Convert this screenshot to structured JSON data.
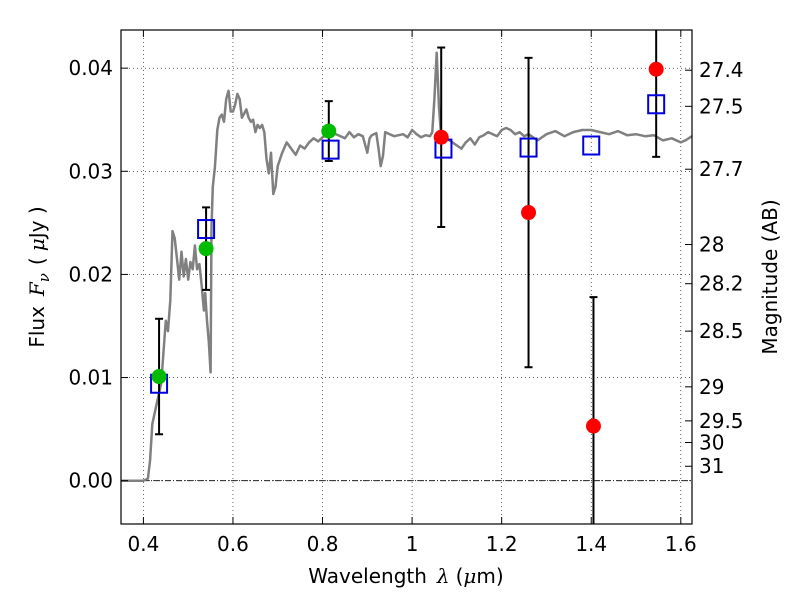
{
  "chart_data": {
    "type": "scatter",
    "xlabel": {
      "prefix": "Wavelength",
      "symbol": "λ",
      "unit_open": "(",
      "unit_mu": "μ",
      "unit_rest": "m)"
    },
    "ylabel": {
      "prefix": "Flux",
      "symbol": "F",
      "subscript": "ν",
      "unit_open": "(",
      "unit_mu": "μ",
      "unit_rest": "Jy )"
    },
    "y2label": "Magnitude (AB)",
    "xlim": [
      0.35,
      1.625
    ],
    "ylim": [
      -0.0042,
      0.0437
    ],
    "grid": true,
    "x_ticks": [
      {
        "value": 0.4,
        "label": "0.4"
      },
      {
        "value": 0.6,
        "label": "0.6"
      },
      {
        "value": 0.8,
        "label": "0.8"
      },
      {
        "value": 1.0,
        "label": "1"
      },
      {
        "value": 1.2,
        "label": "1.2"
      },
      {
        "value": 1.4,
        "label": "1.4"
      },
      {
        "value": 1.6,
        "label": "1.6"
      }
    ],
    "y_ticks": [
      {
        "value": 0.0,
        "label": "0.00"
      },
      {
        "value": 0.01,
        "label": "0.01"
      },
      {
        "value": 0.02,
        "label": "0.02"
      },
      {
        "value": 0.03,
        "label": "0.03"
      },
      {
        "value": 0.04,
        "label": "0.04"
      }
    ],
    "y2_ticks": [
      {
        "label": "27.4",
        "flux": 0.0398
      },
      {
        "label": "27.5",
        "flux": 0.0363
      },
      {
        "label": "27.7",
        "flux": 0.0302
      },
      {
        "label": "28",
        "flux": 0.0229
      },
      {
        "label": "28.2",
        "flux": 0.0191
      },
      {
        "label": "28.5",
        "flux": 0.0145
      },
      {
        "label": "29",
        "flux": 0.0091
      },
      {
        "label": "29.5",
        "flux": 0.0058
      },
      {
        "label": "30",
        "flux": 0.0037
      },
      {
        "label": "31",
        "flux": 0.0014
      }
    ],
    "series": [
      {
        "kind": "line",
        "color": "#808080",
        "points": [
          [
            0.35,
            0.0
          ],
          [
            0.4,
            0.0
          ],
          [
            0.41,
            0.0002
          ],
          [
            0.415,
            0.002
          ],
          [
            0.42,
            0.0055
          ],
          [
            0.43,
            0.0075
          ],
          [
            0.44,
            0.0095
          ],
          [
            0.445,
            0.0125
          ],
          [
            0.45,
            0.0155
          ],
          [
            0.455,
            0.0145
          ],
          [
            0.46,
            0.0175
          ],
          [
            0.465,
            0.0242
          ],
          [
            0.47,
            0.0235
          ],
          [
            0.475,
            0.0215
          ],
          [
            0.48,
            0.0195
          ],
          [
            0.485,
            0.0222
          ],
          [
            0.49,
            0.0198
          ],
          [
            0.495,
            0.0215
          ],
          [
            0.5,
            0.0195
          ],
          [
            0.505,
            0.0212
          ],
          [
            0.51,
            0.0205
          ],
          [
            0.515,
            0.0228
          ],
          [
            0.52,
            0.0205
          ],
          [
            0.525,
            0.021
          ],
          [
            0.53,
            0.019
          ],
          [
            0.535,
            0.0165
          ],
          [
            0.538,
            0.0182
          ],
          [
            0.542,
            0.0155
          ],
          [
            0.546,
            0.0135
          ],
          [
            0.55,
            0.0105
          ],
          [
            0.552,
            0.0245
          ],
          [
            0.555,
            0.0285
          ],
          [
            0.56,
            0.0305
          ],
          [
            0.565,
            0.034
          ],
          [
            0.57,
            0.0352
          ],
          [
            0.575,
            0.0355
          ],
          [
            0.58,
            0.0348
          ],
          [
            0.585,
            0.037
          ],
          [
            0.59,
            0.0378
          ],
          [
            0.595,
            0.0358
          ],
          [
            0.6,
            0.0358
          ],
          [
            0.605,
            0.0365
          ],
          [
            0.61,
            0.0375
          ],
          [
            0.615,
            0.037
          ],
          [
            0.62,
            0.0352
          ],
          [
            0.625,
            0.0356
          ],
          [
            0.63,
            0.036
          ],
          [
            0.635,
            0.0352
          ],
          [
            0.64,
            0.0348
          ],
          [
            0.645,
            0.035
          ],
          [
            0.65,
            0.0338
          ],
          [
            0.655,
            0.0345
          ],
          [
            0.66,
            0.0342
          ],
          [
            0.665,
            0.0345
          ],
          [
            0.67,
            0.0338
          ],
          [
            0.675,
            0.0312
          ],
          [
            0.68,
            0.0298
          ],
          [
            0.685,
            0.0318
          ],
          [
            0.69,
            0.0278
          ],
          [
            0.695,
            0.0285
          ],
          [
            0.7,
            0.0305
          ],
          [
            0.71,
            0.0318
          ],
          [
            0.72,
            0.0328
          ],
          [
            0.73,
            0.0322
          ],
          [
            0.74,
            0.0316
          ],
          [
            0.75,
            0.0325
          ],
          [
            0.76,
            0.0322
          ],
          [
            0.77,
            0.0328
          ],
          [
            0.78,
            0.0332
          ],
          [
            0.79,
            0.0329
          ],
          [
            0.8,
            0.0333
          ],
          [
            0.81,
            0.0335
          ],
          [
            0.82,
            0.0338
          ],
          [
            0.83,
            0.0336
          ],
          [
            0.84,
            0.0334
          ],
          [
            0.85,
            0.0332
          ],
          [
            0.86,
            0.0338
          ],
          [
            0.87,
            0.0333
          ],
          [
            0.88,
            0.0336
          ],
          [
            0.89,
            0.0334
          ],
          [
            0.9,
            0.0318
          ],
          [
            0.905,
            0.0332
          ],
          [
            0.91,
            0.0335
          ],
          [
            0.92,
            0.0337
          ],
          [
            0.925,
            0.0322
          ],
          [
            0.93,
            0.0305
          ],
          [
            0.935,
            0.0315
          ],
          [
            0.94,
            0.0338
          ],
          [
            0.95,
            0.0336
          ],
          [
            0.96,
            0.0334
          ],
          [
            0.97,
            0.0335
          ],
          [
            0.98,
            0.0336
          ],
          [
            0.99,
            0.0333
          ],
          [
            1.0,
            0.034
          ],
          [
            1.01,
            0.0336
          ],
          [
            1.02,
            0.0333
          ],
          [
            1.03,
            0.0335
          ],
          [
            1.04,
            0.0334
          ],
          [
            1.045,
            0.0338
          ],
          [
            1.05,
            0.0372
          ],
          [
            1.055,
            0.0415
          ],
          [
            1.06,
            0.0362
          ],
          [
            1.065,
            0.0333
          ],
          [
            1.07,
            0.0334
          ],
          [
            1.08,
            0.0331
          ],
          [
            1.09,
            0.0328
          ],
          [
            1.1,
            0.0325
          ],
          [
            1.11,
            0.0322
          ],
          [
            1.12,
            0.0328
          ],
          [
            1.13,
            0.0332
          ],
          [
            1.14,
            0.0326
          ],
          [
            1.15,
            0.0333
          ],
          [
            1.16,
            0.0335
          ],
          [
            1.17,
            0.0338
          ],
          [
            1.18,
            0.0336
          ],
          [
            1.19,
            0.0334
          ],
          [
            1.2,
            0.034
          ],
          [
            1.21,
            0.0342
          ],
          [
            1.22,
            0.034
          ],
          [
            1.23,
            0.0336
          ],
          [
            1.24,
            0.0338
          ],
          [
            1.25,
            0.0334
          ],
          [
            1.26,
            0.0336
          ],
          [
            1.28,
            0.033
          ],
          [
            1.3,
            0.0336
          ],
          [
            1.32,
            0.0339
          ],
          [
            1.34,
            0.0334
          ],
          [
            1.36,
            0.0338
          ],
          [
            1.38,
            0.034
          ],
          [
            1.4,
            0.034
          ],
          [
            1.42,
            0.0338
          ],
          [
            1.44,
            0.0336
          ],
          [
            1.46,
            0.0339
          ],
          [
            1.48,
            0.0335
          ],
          [
            1.5,
            0.0336
          ],
          [
            1.52,
            0.0334
          ],
          [
            1.54,
            0.0335
          ],
          [
            1.56,
            0.033
          ],
          [
            1.58,
            0.0332
          ],
          [
            1.6,
            0.0328
          ],
          [
            1.61,
            0.033
          ],
          [
            1.625,
            0.0334
          ]
        ]
      },
      {
        "kind": "markers",
        "marker": "circle",
        "color": "#00bb00",
        "points": [
          {
            "x": 0.435,
            "y": 0.0101,
            "err": 0.0056
          },
          {
            "x": 0.54,
            "y": 0.0225,
            "err": 0.004
          },
          {
            "x": 0.814,
            "y": 0.0339,
            "err": 0.0029
          }
        ]
      },
      {
        "kind": "markers",
        "marker": "circle",
        "color": "#ff0000",
        "points": [
          {
            "x": 1.065,
            "y": 0.0333,
            "err": 0.0087
          },
          {
            "x": 1.26,
            "y": 0.026,
            "err": 0.015
          },
          {
            "x": 1.405,
            "y": 0.0053,
            "err": 0.0125
          },
          {
            "x": 1.545,
            "y": 0.0399,
            "err": 0.0085
          }
        ]
      },
      {
        "kind": "markers",
        "marker": "square",
        "color": "#0000dd",
        "points": [
          {
            "x": 0.435,
            "y": 0.0094
          },
          {
            "x": 0.54,
            "y": 0.0244
          },
          {
            "x": 0.818,
            "y": 0.0321
          },
          {
            "x": 1.07,
            "y": 0.0322
          },
          {
            "x": 1.26,
            "y": 0.0323
          },
          {
            "x": 1.4,
            "y": 0.0325
          },
          {
            "x": 1.545,
            "y": 0.0365
          }
        ]
      }
    ]
  }
}
